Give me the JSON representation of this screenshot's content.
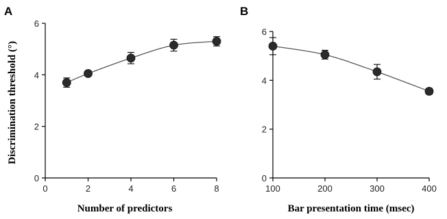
{
  "chart_data": [
    {
      "type": "line",
      "panel": "A",
      "xlabel": "Number of predictors",
      "ylabel": "Discrimination threshold (°)",
      "xlim": [
        0,
        8
      ],
      "ylim": [
        0,
        6
      ],
      "xticks": [
        0,
        2,
        4,
        6,
        8
      ],
      "yticks": [
        0,
        2,
        4,
        6
      ],
      "grid": false,
      "series": [
        {
          "x": [
            1,
            2,
            4,
            6,
            8
          ],
          "values": [
            3.7,
            4.05,
            4.65,
            5.15,
            5.3
          ],
          "errors": [
            0.18,
            0.08,
            0.22,
            0.23,
            0.18
          ]
        }
      ]
    },
    {
      "type": "line",
      "panel": "B",
      "xlabel": "Bar presentation time (msec)",
      "ylabel": "",
      "xlim": [
        100,
        400
      ],
      "ylim": [
        0,
        6
      ],
      "xticks": [
        100,
        200,
        300,
        400
      ],
      "yticks": [
        0,
        2,
        4,
        6
      ],
      "grid": false,
      "series": [
        {
          "x": [
            100,
            200,
            300,
            400
          ],
          "values": [
            5.4,
            5.05,
            4.35,
            3.55
          ],
          "errors": [
            0.35,
            0.18,
            0.3,
            0.12
          ]
        }
      ]
    }
  ]
}
